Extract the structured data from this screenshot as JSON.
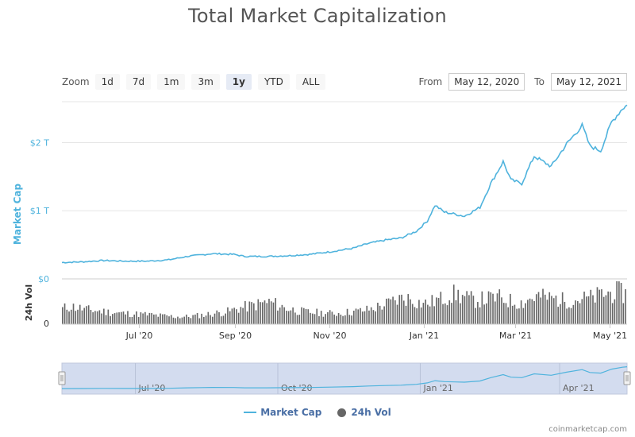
{
  "title": "Total Market Capitalization",
  "zoom": {
    "label": "Zoom",
    "buttons": [
      "1d",
      "7d",
      "1m",
      "3m",
      "1y",
      "YTD",
      "ALL"
    ],
    "active": "1y"
  },
  "range": {
    "from_label": "From",
    "from_value": "May 12, 2020",
    "to_label": "To",
    "to_value": "May 12, 2021"
  },
  "legend": {
    "market_cap": "Market Cap",
    "volume": "24h Vol"
  },
  "credit": "coinmarketcap.com",
  "colors": {
    "line": "#4fb3dd",
    "volume": "#666666",
    "navigator_fill": "#d3dcef",
    "axis_text": "#4fb3dd"
  },
  "chart_data": {
    "type": "line",
    "main": {
      "ylabel": "Market Cap",
      "yticks": [
        0,
        1,
        2
      ],
      "ytick_labels": [
        "$0",
        "$1 T",
        "$2 T"
      ],
      "ylim": [
        0,
        2.6
      ],
      "unit": "T USD",
      "x_start": "2020-05-12",
      "x_end": "2021-05-12",
      "series": [
        {
          "name": "Market Cap",
          "points": [
            [
              "2020-05-12",
              0.24
            ],
            [
              "2020-05-25",
              0.25
            ],
            [
              "2020-06-08",
              0.27
            ],
            [
              "2020-06-22",
              0.26
            ],
            [
              "2020-07-06",
              0.26
            ],
            [
              "2020-07-20",
              0.28
            ],
            [
              "2020-08-01",
              0.33
            ],
            [
              "2020-08-17",
              0.37
            ],
            [
              "2020-08-31",
              0.36
            ],
            [
              "2020-09-07",
              0.33
            ],
            [
              "2020-09-21",
              0.33
            ],
            [
              "2020-10-05",
              0.34
            ],
            [
              "2020-10-19",
              0.36
            ],
            [
              "2020-11-02",
              0.4
            ],
            [
              "2020-11-16",
              0.45
            ],
            [
              "2020-11-26",
              0.52
            ],
            [
              "2020-12-07",
              0.57
            ],
            [
              "2020-12-17",
              0.6
            ],
            [
              "2020-12-27",
              0.7
            ],
            [
              "2021-01-03",
              0.85
            ],
            [
              "2021-01-08",
              1.08
            ],
            [
              "2021-01-14",
              0.98
            ],
            [
              "2021-01-21",
              0.95
            ],
            [
              "2021-01-27",
              0.92
            ],
            [
              "2021-02-06",
              1.05
            ],
            [
              "2021-02-13",
              1.4
            ],
            [
              "2021-02-21",
              1.72
            ],
            [
              "2021-02-26",
              1.45
            ],
            [
              "2021-03-05",
              1.4
            ],
            [
              "2021-03-13",
              1.8
            ],
            [
              "2021-03-24",
              1.65
            ],
            [
              "2021-04-03",
              1.98
            ],
            [
              "2021-04-13",
              2.25
            ],
            [
              "2021-04-18",
              1.95
            ],
            [
              "2021-04-25",
              1.88
            ],
            [
              "2021-05-02",
              2.3
            ],
            [
              "2021-05-09",
              2.5
            ],
            [
              "2021-05-12",
              2.55
            ]
          ]
        }
      ]
    },
    "volume": {
      "ylabel": "24h Vol",
      "ytick_labels": [
        "0"
      ],
      "bars": [
        0.36,
        0.42,
        0.38,
        0.34,
        0.32,
        0.3,
        0.28,
        0.26,
        0.25,
        0.24,
        0.23,
        0.22,
        0.2,
        0.19,
        0.18,
        0.17,
        0.18,
        0.2,
        0.22,
        0.25,
        0.27,
        0.3,
        0.36,
        0.4,
        0.44,
        0.48,
        0.52,
        0.46,
        0.38,
        0.34,
        0.3,
        0.28,
        0.27,
        0.26,
        0.25,
        0.26,
        0.28,
        0.3,
        0.32,
        0.36,
        0.42,
        0.48,
        0.55,
        0.62,
        0.58,
        0.5,
        0.48,
        0.55,
        0.6,
        0.7,
        0.68,
        0.6,
        0.56,
        0.58,
        0.6,
        0.62,
        0.56,
        0.52,
        0.5,
        0.6,
        0.65,
        0.62,
        0.6,
        0.56,
        0.55,
        0.58,
        0.6,
        0.62,
        0.7,
        0.72,
        0.75,
        0.7
      ],
      "vmax": 1
    },
    "xtick_labels": [
      "Jul '20",
      "Sep '20",
      "Nov '20",
      "Jan '21",
      "Mar '21",
      "May '21"
    ],
    "xtick_dates": [
      "2020-07-01",
      "2020-09-01",
      "2020-11-01",
      "2021-01-01",
      "2021-03-01",
      "2021-05-01"
    ],
    "navigator": {
      "xtick_labels": [
        "Jul '20",
        "Oct '20",
        "Jan '21",
        "Apr '21"
      ],
      "xtick_dates": [
        "2020-07-01",
        "2020-10-01",
        "2021-01-01",
        "2021-04-01"
      ]
    }
  }
}
